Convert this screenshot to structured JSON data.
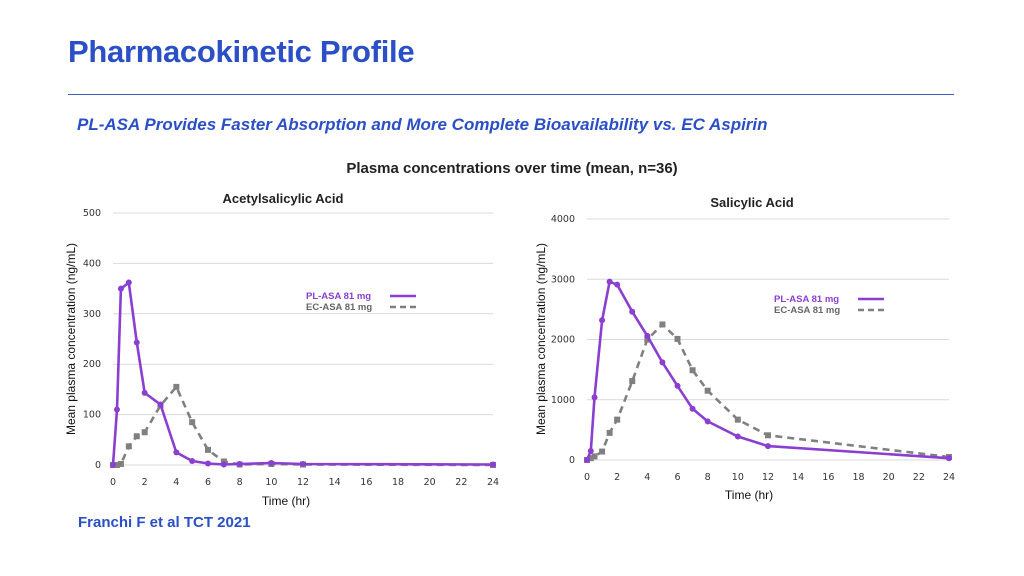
{
  "slide": {
    "title": "Pharmacokinetic Profile",
    "subtitle": "PL-ASA Provides Faster Absorption and More Complete Bioavailability vs. EC Aspirin",
    "caption": "Plasma concentrations over time (mean, n=36)",
    "citation": "Franchi F et al TCT 2021"
  },
  "colors": {
    "brand_blue": "#2a4fc6",
    "pl_asa": "#8a3fd1",
    "ec_asa": "#808080",
    "grid": "#d9d9d9"
  },
  "chart_data": [
    {
      "type": "line",
      "title": "Acetylsalicylic Acid",
      "xlabel": "Time (hr)",
      "ylabel": "Mean plasma concentration (ng/mL)",
      "xlim": [
        0,
        24
      ],
      "ylim": [
        0,
        500
      ],
      "xticks": [
        "0",
        "2",
        "4",
        "6",
        "8",
        "10",
        "12",
        "14",
        "16",
        "18",
        "20",
        "22",
        "24"
      ],
      "yticks": [
        "0",
        "100",
        "200",
        "300",
        "400",
        "500"
      ],
      "grid": true,
      "legend_position": "upper-right",
      "series": [
        {
          "name": "PL-ASA 81 mg",
          "style": "solid",
          "marker": "circle",
          "x": [
            0,
            0.25,
            0.5,
            1,
            1.5,
            2,
            3,
            4,
            5,
            6,
            7,
            8,
            10,
            12,
            24
          ],
          "y": [
            0,
            110,
            350,
            362,
            243,
            143,
            120,
            25,
            8,
            3,
            1,
            2,
            4,
            2,
            1
          ]
        },
        {
          "name": "EC-ASA 81 mg",
          "style": "dashed",
          "marker": "square",
          "x": [
            0,
            0.25,
            0.5,
            1,
            1.5,
            2,
            3,
            4,
            5,
            6,
            7,
            8,
            10,
            12,
            24
          ],
          "y": [
            0,
            0,
            2,
            37,
            57,
            65,
            118,
            155,
            85,
            30,
            7,
            1,
            2,
            1,
            0
          ]
        }
      ]
    },
    {
      "type": "line",
      "title": "Salicylic Acid",
      "xlabel": "Time (hr)",
      "ylabel": "Mean plasma concentration (ng/mL)",
      "xlim": [
        0,
        24
      ],
      "ylim": [
        0,
        4000
      ],
      "xticks": [
        "0",
        "2",
        "4",
        "6",
        "8",
        "10",
        "12",
        "14",
        "16",
        "18",
        "20",
        "22",
        "24"
      ],
      "yticks": [
        "0",
        "1000",
        "2000",
        "3000",
        "4000"
      ],
      "grid": true,
      "legend_position": "upper-right",
      "series": [
        {
          "name": "PL-ASA 81 mg",
          "style": "solid",
          "marker": "circle",
          "x": [
            0,
            0.25,
            0.5,
            1,
            1.5,
            2,
            3,
            4,
            5,
            6,
            7,
            8,
            10,
            12,
            24
          ],
          "y": [
            0,
            150,
            1040,
            2320,
            2960,
            2910,
            2460,
            2060,
            1620,
            1230,
            850,
            640,
            390,
            230,
            30
          ]
        },
        {
          "name": "EC-ASA 81 mg",
          "style": "dashed",
          "marker": "square",
          "x": [
            0,
            0.25,
            0.5,
            1,
            1.5,
            2,
            3,
            4,
            5,
            6,
            7,
            8,
            10,
            12,
            24
          ],
          "y": [
            0,
            30,
            60,
            140,
            450,
            670,
            1310,
            2000,
            2250,
            2010,
            1490,
            1150,
            670,
            410,
            50
          ]
        }
      ]
    }
  ]
}
